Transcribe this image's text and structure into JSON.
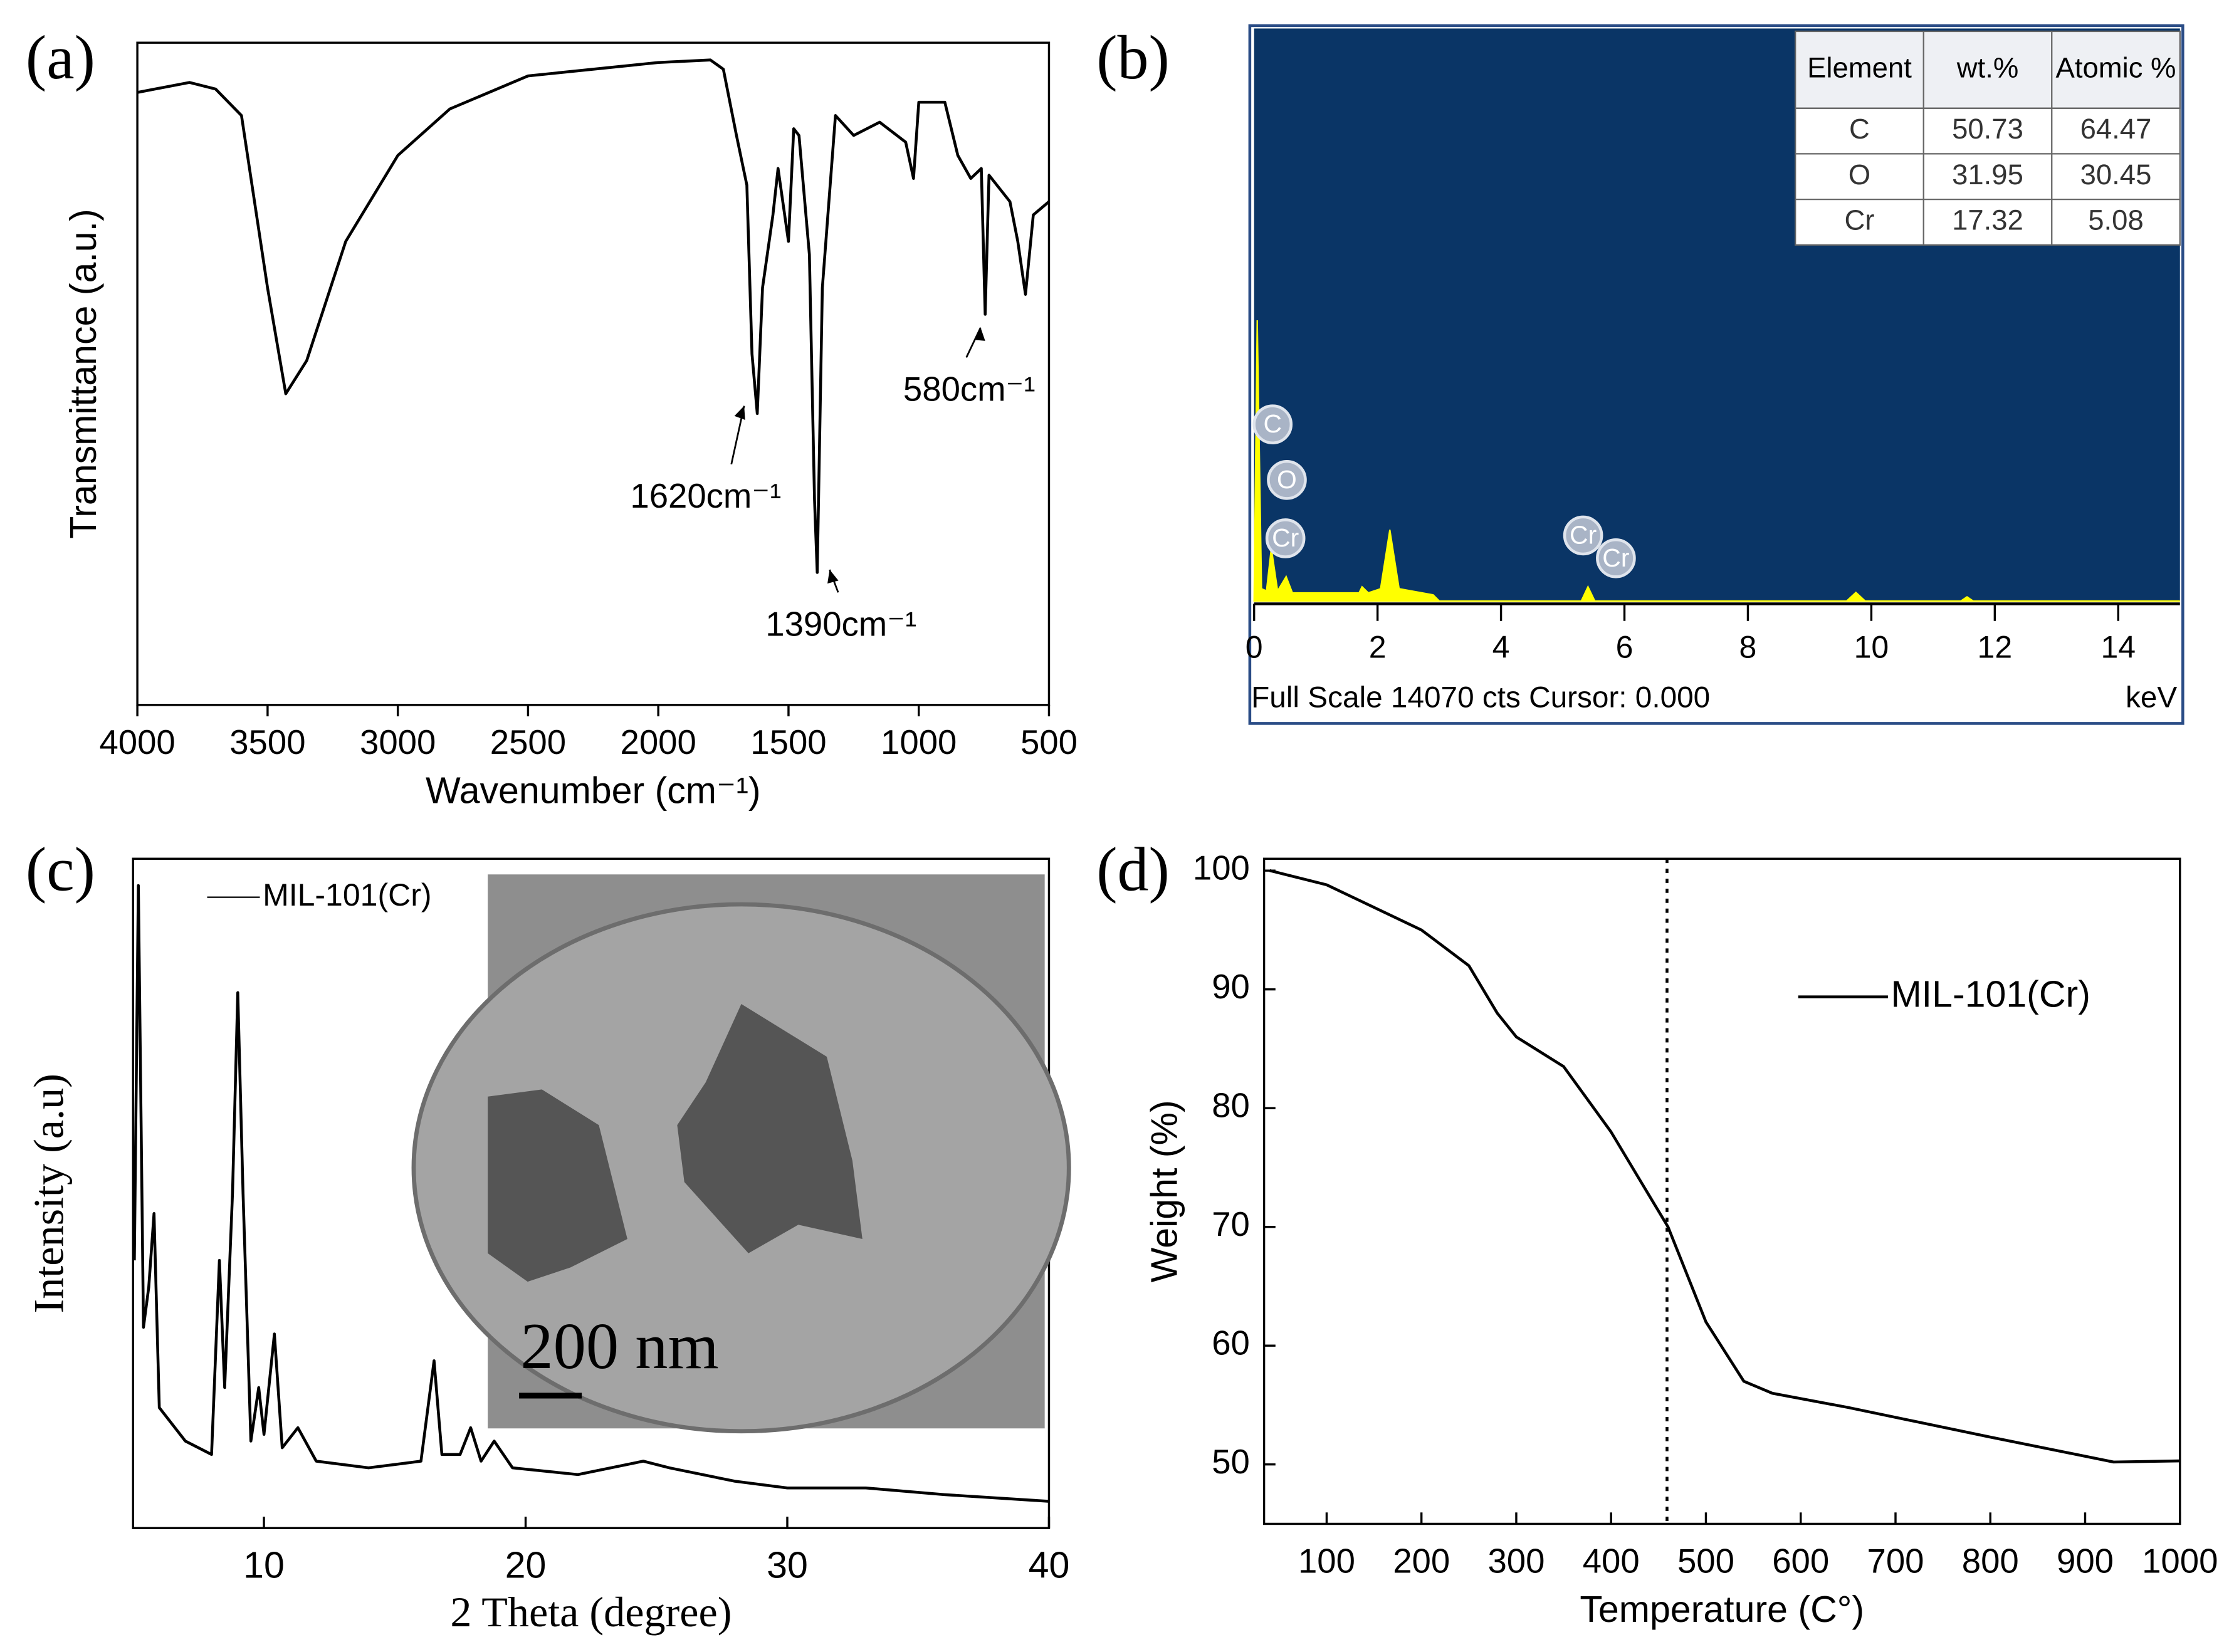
{
  "chart_data": [
    {
      "type": "line",
      "panel_label": "(a)",
      "xlabel": "Wavenumber (cm⁻¹)",
      "ylabel": "Transmittance (a.u.)",
      "xlim": [
        4000,
        500
      ],
      "ylim": [
        0,
        100
      ],
      "xticks": [
        4000,
        3500,
        3000,
        2500,
        2000,
        1500,
        1000,
        500
      ],
      "color": "#000000",
      "annotations": [
        "1620cm⁻¹",
        "1390cm⁻¹",
        "580cm⁻¹"
      ],
      "x": [
        4000,
        3800,
        3700,
        3600,
        3500,
        3430,
        3350,
        3200,
        3000,
        2800,
        2500,
        2000,
        1800,
        1750,
        1700,
        1660,
        1640,
        1620,
        1600,
        1560,
        1540,
        1500,
        1480,
        1460,
        1420,
        1400,
        1390,
        1370,
        1320,
        1250,
        1150,
        1050,
        1020,
        1000,
        900,
        850,
        800,
        760,
        745,
        730,
        650,
        620,
        590,
        560,
        500
      ],
      "values": [
        92.5,
        94,
        93,
        89,
        63,
        47,
        52,
        70,
        83,
        90,
        95,
        97,
        97.4,
        96,
        86,
        78.5,
        53,
        44,
        63,
        74,
        81,
        70,
        87,
        86,
        68,
        31,
        20,
        63,
        89,
        86,
        88,
        85,
        79.5,
        91,
        91,
        83,
        79.5,
        81,
        59,
        80,
        76,
        70,
        62,
        74,
        76
      ]
    },
    {
      "type": "area",
      "panel_label": "(b)",
      "footer": "Full Scale 14070 cts Cursor: 0.000",
      "xunit": "keV",
      "xlim": [
        0,
        15
      ],
      "ylim": [
        0,
        14070
      ],
      "xticks": [
        0,
        2,
        4,
        6,
        8,
        10,
        12,
        14
      ],
      "color": "#ffff00",
      "background": "#0a3566",
      "peak_labels": [
        "C",
        "O",
        "Cr",
        "Cr",
        "Cr"
      ],
      "table": {
        "columns": [
          "Element",
          "wt.%",
          "Atomic %"
        ],
        "rows": [
          [
            "C",
            "50.73",
            "64.47"
          ],
          [
            "O",
            "31.95",
            "30.45"
          ],
          [
            "Cr",
            "17.32",
            "5.08"
          ]
        ]
      },
      "x": [
        0,
        0.05,
        0.12,
        0.2,
        0.28,
        0.38,
        0.52,
        0.62,
        1.7,
        1.75,
        1.85,
        2.05,
        2.2,
        2.35,
        2.9,
        3.0,
        5.3,
        5.41,
        5.52,
        9.6,
        9.75,
        9.9,
        11.45,
        11.55,
        11.65,
        15
      ],
      "values": [
        0,
        6900,
        300,
        250,
        1300,
        250,
        600,
        200,
        200,
        350,
        200,
        300,
        1750,
        300,
        150,
        0,
        0,
        350,
        0,
        0,
        210,
        0,
        0,
        100,
        0,
        0
      ]
    },
    {
      "type": "line",
      "panel_label": "(c)",
      "xlabel": "2 Theta (degree)",
      "ylabel": "Intensity (a.u)",
      "legend": "MIL-101(Cr)",
      "scale_bar": "200 nm",
      "xlim": [
        5,
        40
      ],
      "ylim": [
        0,
        100
      ],
      "xticks": [
        10,
        20,
        30,
        40
      ],
      "color": "#000000",
      "x": [
        5.05,
        5.2,
        5.4,
        5.6,
        5.8,
        6.0,
        7,
        8,
        8.3,
        8.5,
        8.8,
        9.0,
        9.2,
        9.5,
        9.8,
        10.0,
        10.4,
        10.7,
        11.3,
        12,
        14,
        16,
        16.5,
        16.8,
        17.5,
        17.9,
        18.3,
        18.8,
        19.5,
        22,
        24.5,
        25.5,
        28,
        30,
        33,
        36,
        40
      ],
      "values": [
        40,
        96,
        30,
        36,
        47,
        18,
        13,
        11,
        40,
        21,
        50,
        80,
        50,
        13,
        21,
        14,
        29,
        12,
        15,
        10,
        9,
        10,
        25,
        11,
        11,
        15,
        10,
        13,
        9,
        8,
        10,
        9,
        7,
        6,
        6,
        5,
        4
      ]
    },
    {
      "type": "line",
      "panel_label": "(d)",
      "xlabel": "Temperature (C°)",
      "ylabel": "Weight (%)",
      "legend": "MIL-101(Cr)",
      "marker_x": 459,
      "xlim": [
        34,
        1000
      ],
      "ylim": [
        45,
        101
      ],
      "xticks": [
        100,
        200,
        300,
        400,
        500,
        600,
        700,
        800,
        900,
        1000
      ],
      "yticks": [
        50,
        60,
        70,
        80,
        90,
        100
      ],
      "color": "#000000",
      "x": [
        40,
        100,
        200,
        250,
        280,
        300,
        350,
        400,
        430,
        460,
        500,
        540,
        570,
        650,
        800,
        930,
        1000
      ],
      "values": [
        100,
        98.8,
        95,
        92,
        88,
        86,
        83.5,
        78,
        74,
        70,
        62,
        57,
        56,
        54.8,
        52.3,
        50.2,
        50.3
      ]
    }
  ]
}
